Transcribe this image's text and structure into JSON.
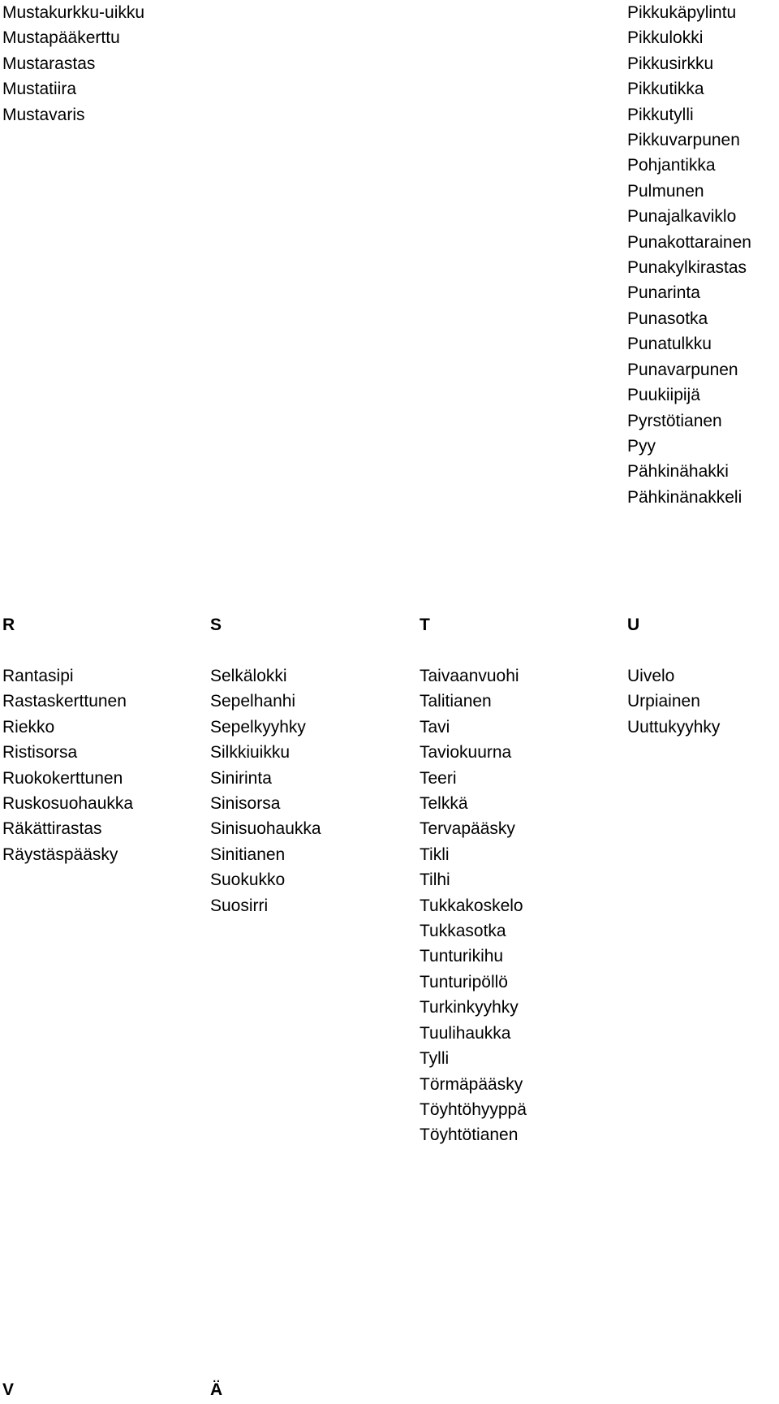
{
  "top_section": {
    "m_continued": [
      "Mustakurkku-uikku",
      "Mustapääkerttu",
      "Mustarastas",
      "Mustatiira",
      "Mustavaris"
    ],
    "p_continued": [
      "Pikkukäpylintu",
      "Pikkulokki",
      "Pikkusirkku",
      "Pikkutikka",
      "Pikkutylli",
      "Pikkuvarpunen",
      "Pohjantikka",
      "Pulmunen",
      "Punajalkaviklo",
      "Punakottarainen",
      "Punakylkirastas",
      "Punarinta",
      "Punasotka",
      "Punatulkku",
      "Punavarpunen",
      "Puukiipijä",
      "Pyrstötianen",
      "Pyy",
      "Pähkinähakki",
      "Pähkinänakkeli"
    ]
  },
  "sections": [
    {
      "letter": "R",
      "birds": [
        "Rantasipi",
        "Rastaskerttunen",
        "Riekko",
        "Ristisorsa",
        "Ruokokerttunen",
        "Ruskosuohaukka",
        "Räkättirastas",
        "Räystäspääsky"
      ]
    },
    {
      "letter": "S",
      "birds": [
        "Selkälokki",
        "Sepelhanhi",
        "Sepelkyyhky",
        "Silkkiuikku",
        "Sinirinta",
        "Sinisorsa",
        "Sinisuohaukka",
        "Sinitianen",
        "Suokukko",
        "Suosirri"
      ]
    },
    {
      "letter": "T",
      "birds": [
        "Taivaanvuohi",
        "Talitianen",
        "Tavi",
        "Taviokuurna",
        "Teeri",
        "Telkkä",
        "Tervapääsky",
        "Tikli",
        "Tilhi",
        "Tukkakoskelo",
        "Tukkasotka",
        "Tunturikihu",
        "Tunturipöllö",
        "Turkinkyyhky",
        "Tuulihaukka",
        "Tylli",
        "Törmäpääsky",
        "Töyhtöhyyppä",
        "Töyhtötianen"
      ]
    },
    {
      "letter": "U",
      "birds": [
        "Uivelo",
        "Urpiainen",
        "Uuttukyyhky"
      ]
    }
  ],
  "bottom_headings": {
    "v": "V",
    "a_umlaut": "Ä"
  }
}
